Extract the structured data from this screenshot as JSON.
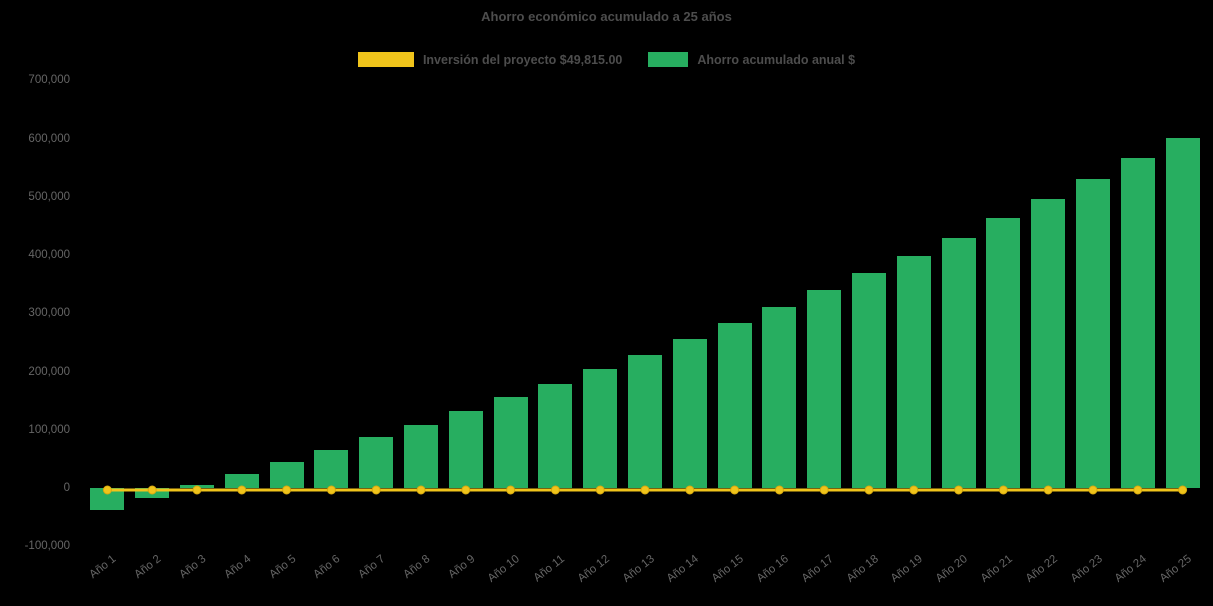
{
  "chart_data": {
    "type": "bar",
    "title": "Ahorro económico acumulado a 25 años",
    "background": "#000000",
    "text_color": "#666666",
    "grid": false,
    "legend_position": "top",
    "ylim": [
      -100000,
      700000
    ],
    "yticks": [
      700000,
      600000,
      500000,
      400000,
      300000,
      200000,
      100000,
      0,
      -100000
    ],
    "categories": [
      "Año 1",
      "Año 2",
      "Año 3",
      "Año 4",
      "Año 5",
      "Año 6",
      "Año 7",
      "Año 8",
      "Año 9",
      "Año 10",
      "Año 11",
      "Año 12",
      "Año 13",
      "Año 14",
      "Año 15",
      "Año 16",
      "Año 17",
      "Año 18",
      "Año 19",
      "Año 20",
      "Año 21",
      "Año 22",
      "Año 23",
      "Año 24",
      "Año 25"
    ],
    "series": [
      {
        "name": "Inversión del proyecto $49,815.00",
        "type": "line",
        "color": "#f0c41b",
        "marker_stroke": "#d9a90e",
        "plotted_at": 0,
        "values": [
          0,
          0,
          0,
          0,
          0,
          0,
          0,
          0,
          0,
          0,
          0,
          0,
          0,
          0,
          0,
          0,
          0,
          0,
          0,
          0,
          0,
          0,
          0,
          0,
          0
        ]
      },
      {
        "name": "Ahorro acumulado anual $",
        "type": "bar",
        "color": "#27ae60",
        "values": [
          -38000,
          -18000,
          6000,
          24000,
          44000,
          65000,
          87000,
          109000,
          132000,
          156000,
          179000,
          204000,
          229000,
          256000,
          283000,
          311000,
          340000,
          369000,
          399000,
          430000,
          463000,
          496000,
          531000,
          566000,
          601000
        ]
      }
    ]
  }
}
